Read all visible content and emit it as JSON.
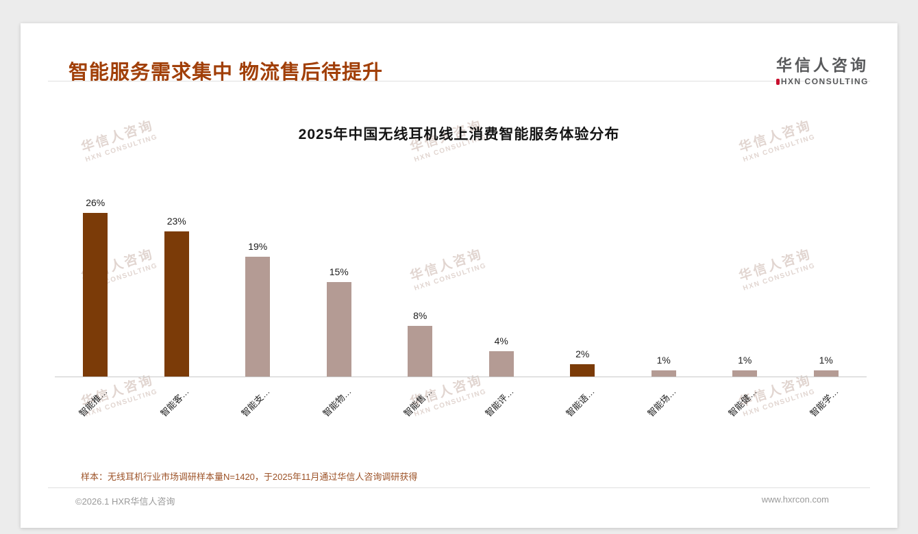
{
  "page": {
    "title": "智能服务需求集中 物流售后待提升",
    "title_color": "#A13F08"
  },
  "logo": {
    "cn": "华信人咨询",
    "en": "HXN CONSULTING",
    "accent_color": "#C8102E"
  },
  "watermark": {
    "line1": "华信人咨询",
    "line2": "HXN CONSULTING"
  },
  "chart_data": {
    "type": "bar",
    "title": "2025年中国无线耳机线上消费智能服务体验分布",
    "categories": [
      "智能推…",
      "智能客…",
      "智能支…",
      "智能物…",
      "智能售…",
      "智能评…",
      "智能语…",
      "智能场…",
      "智能健…",
      "智能学…"
    ],
    "values": [
      26,
      23,
      19,
      15,
      8,
      4,
      2,
      1,
      1,
      1
    ],
    "unit": "%",
    "value_labels": [
      "26%",
      "23%",
      "19%",
      "15%",
      "8%",
      "4%",
      "2%",
      "1%",
      "1%",
      "1%"
    ],
    "bar_colors": [
      "#7B3B08",
      "#7B3B08",
      "#B49B94",
      "#B49B94",
      "#B49B94",
      "#B49B94",
      "#7B3B08",
      "#B49B94",
      "#B49B94",
      "#B49B94"
    ],
    "colors": {
      "primary": "#7B3B08",
      "secondary": "#B49B94"
    },
    "ylim": [
      0,
      28
    ],
    "grid": false,
    "legend": false,
    "x_label_rotation_deg": 45
  },
  "footnote": "样本：无线耳机行业市场调研样本量N=1420，于2025年11月通过华信人咨询调研获得",
  "footer": {
    "left": "©2026.1 HXR华信人咨询",
    "right": "www.hxrcon.com"
  }
}
